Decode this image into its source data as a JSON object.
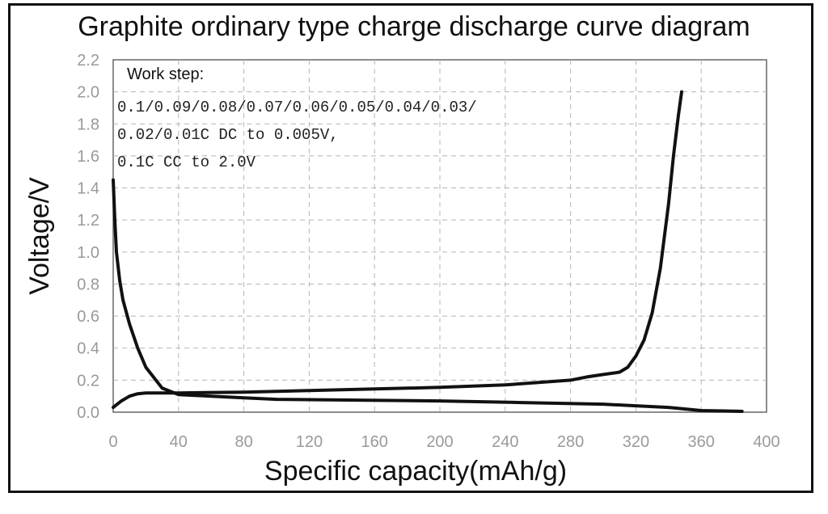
{
  "chart_data": {
    "type": "line",
    "title": "Graphite ordinary type charge discharge curve diagram",
    "xlabel": "Specific capacity(mAh/g)",
    "ylabel": "Voltage/V",
    "xlim": [
      0,
      400
    ],
    "ylim": [
      0,
      2.2
    ],
    "xticks": [
      "0",
      "40",
      "80",
      "120",
      "160",
      "200",
      "240",
      "280",
      "320",
      "360",
      "400"
    ],
    "yticks": [
      "0.0",
      "0.2",
      "0.4",
      "0.6",
      "0.8",
      "1.0",
      "1.2",
      "1.4",
      "1.6",
      "1.8",
      "2.0",
      "2.2"
    ],
    "grid": true,
    "annotation": {
      "heading": "Work step:",
      "lines": [
        "0.1/0.09/0.08/0.07/0.06/0.05/0.04/0.03/",
        "0.02/0.01C DC to 0.005V,",
        "0.1C CC to 2.0V"
      ]
    },
    "series": [
      {
        "x": [
          0,
          1,
          2,
          4,
          6,
          10,
          15,
          20,
          30,
          40,
          50,
          60,
          80,
          100,
          150,
          200,
          250,
          300,
          320,
          340,
          360,
          370,
          380,
          385
        ],
        "y": [
          1.45,
          1.2,
          1.0,
          0.82,
          0.7,
          0.55,
          0.4,
          0.28,
          0.15,
          0.11,
          0.105,
          0.1,
          0.09,
          0.08,
          0.075,
          0.07,
          0.06,
          0.05,
          0.04,
          0.03,
          0.01,
          0.008,
          0.006,
          0.005
        ]
      },
      {
        "x": [
          0,
          5,
          10,
          15,
          20,
          40,
          80,
          120,
          160,
          200,
          240,
          280,
          290,
          300,
          310,
          315,
          320,
          325,
          330,
          335,
          340,
          343,
          346,
          348
        ],
        "y": [
          0.03,
          0.07,
          0.1,
          0.115,
          0.12,
          0.12,
          0.125,
          0.135,
          0.145,
          0.155,
          0.17,
          0.2,
          0.22,
          0.235,
          0.25,
          0.28,
          0.35,
          0.45,
          0.62,
          0.9,
          1.3,
          1.6,
          1.85,
          2.0
        ]
      }
    ]
  }
}
